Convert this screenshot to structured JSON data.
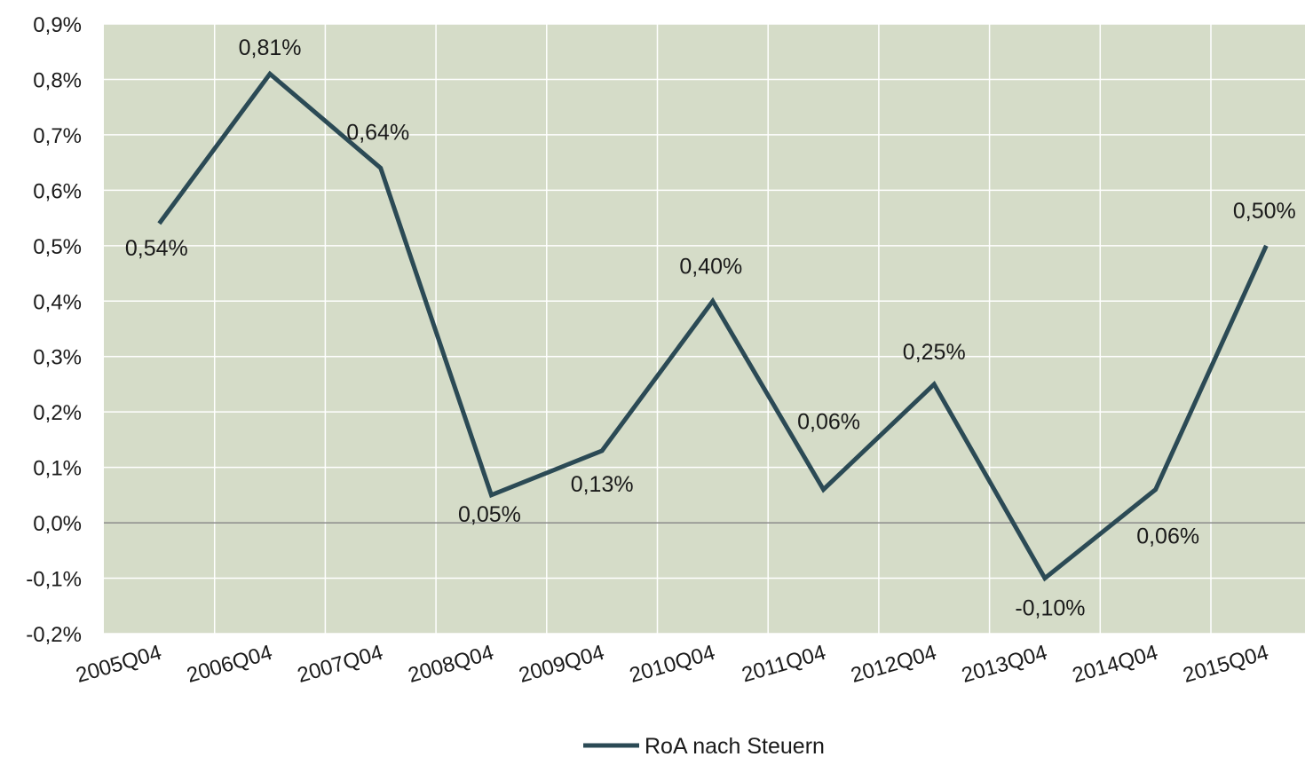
{
  "chart_data": {
    "type": "line",
    "categories": [
      "2005Q04",
      "2006Q04",
      "2007Q04",
      "2008Q04",
      "2009Q04",
      "2010Q04",
      "2011Q04",
      "2012Q04",
      "2013Q04",
      "2014Q04",
      "2015Q04"
    ],
    "series": [
      {
        "name": "RoA nach Steuern",
        "values": [
          0.54,
          0.81,
          0.64,
          0.05,
          0.13,
          0.4,
          0.06,
          0.25,
          -0.1,
          0.06,
          0.5
        ],
        "labels": [
          "0,54%",
          "0,81%",
          "0,64%",
          "0,05%",
          "0,13%",
          "0,40%",
          "0,06%",
          "0,25%",
          "-0,10%",
          "0,06%",
          "0,50%"
        ],
        "color": "#2b4a55"
      }
    ],
    "ylim": [
      -0.2,
      0.9
    ],
    "yticks": [
      0.9,
      0.8,
      0.7,
      0.6,
      0.5,
      0.4,
      0.3,
      0.2,
      0.1,
      0.0,
      -0.1,
      -0.2
    ],
    "ytick_labels": [
      "0,9%",
      "0,8%",
      "0,7%",
      "0,6%",
      "0,5%",
      "0,4%",
      "0,3%",
      "0,2%",
      "0,1%",
      "0,0%",
      "-0,1%",
      "-0,2%"
    ],
    "title": "",
    "xlabel": "",
    "ylabel": "",
    "grid": true,
    "legend": "bottom",
    "plot_background": "#d5dcc8",
    "grid_color": "#ffffff",
    "zero_line_color": "#8c8c8c"
  }
}
